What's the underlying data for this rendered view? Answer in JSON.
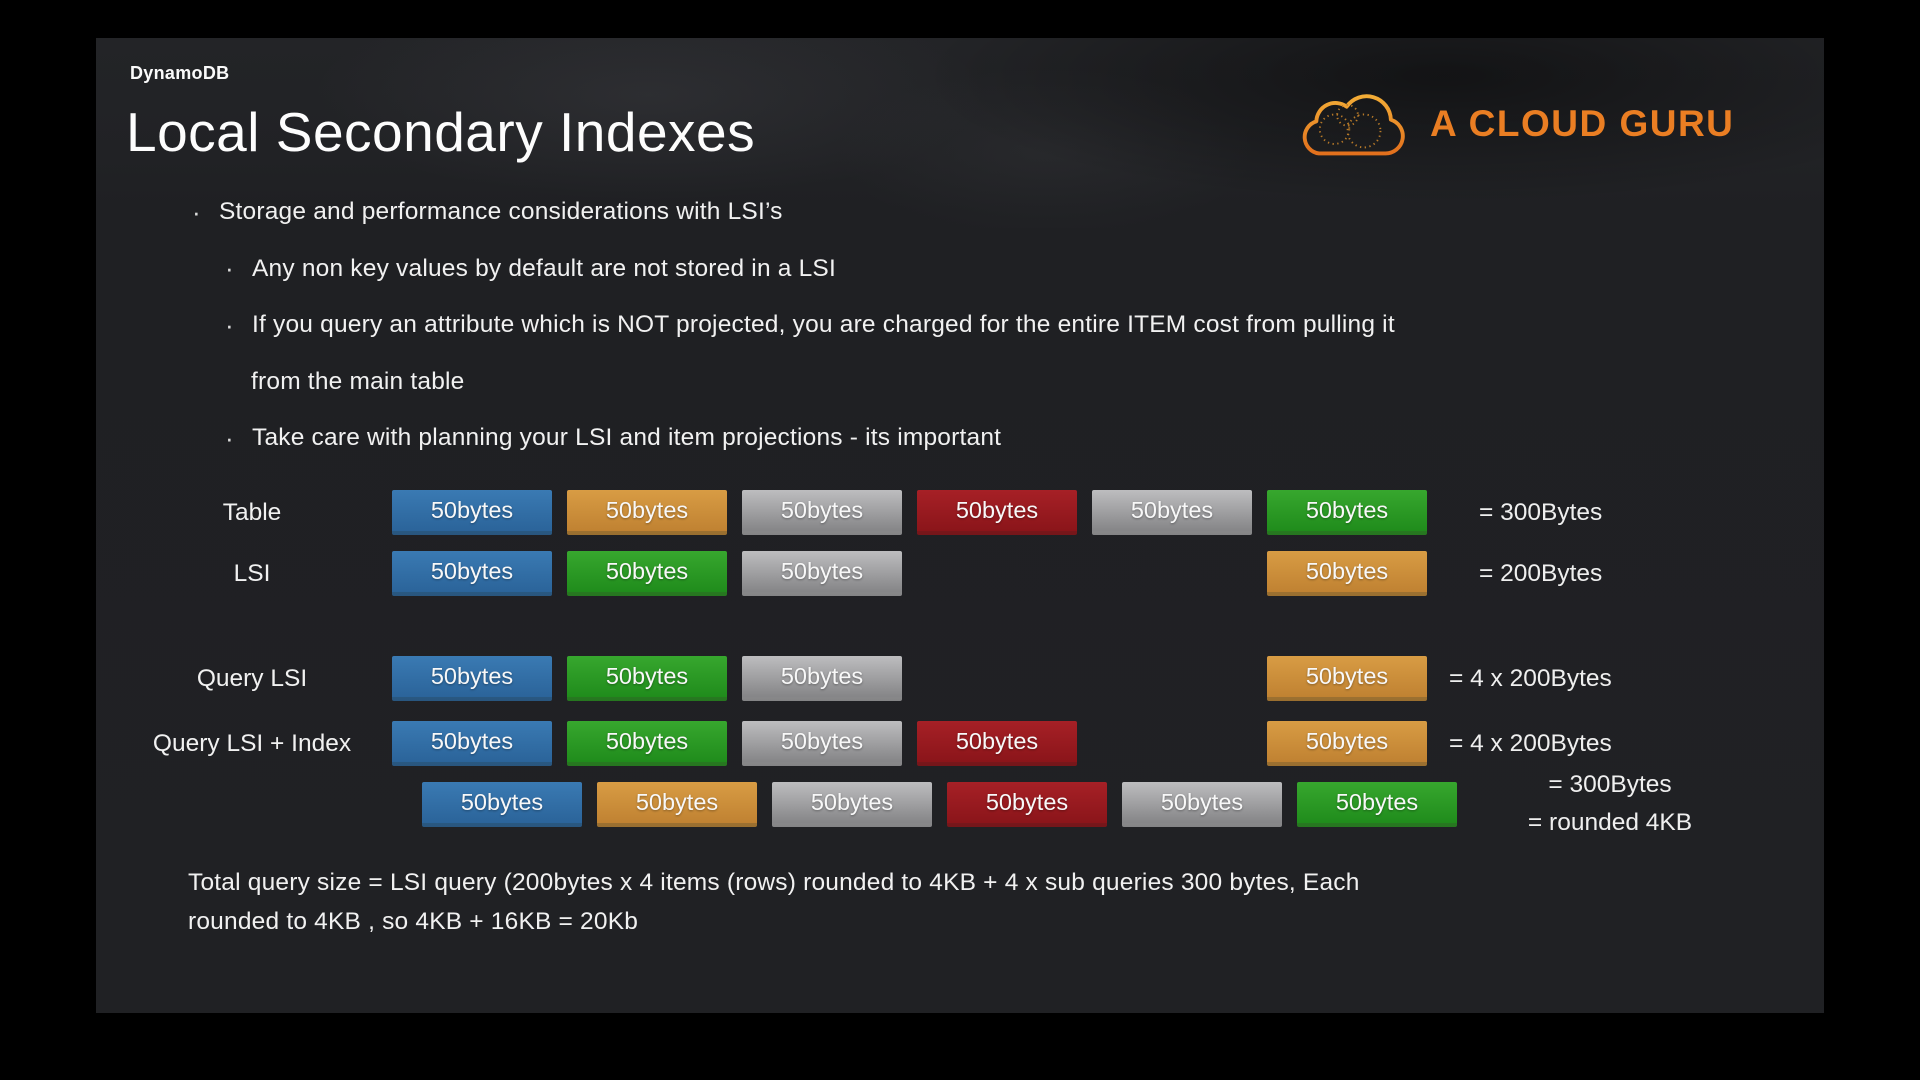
{
  "slide": {
    "kicker": "DynamoDB",
    "title": "Local Secondary Indexes",
    "logo": {
      "text": "A CLOUD GURU",
      "accent": "#EA7E23",
      "icon": "cloud-outline-dotted"
    },
    "bullets": [
      {
        "level": 1,
        "lines": [
          "Storage and performance considerations with LSI’s"
        ]
      },
      {
        "level": 2,
        "lines": [
          "Any non key values by default are not stored in a LSI"
        ]
      },
      {
        "level": 2,
        "lines": [
          "If you query an attribute which is NOT projected, you are charged for the entire ITEM cost from pulling it",
          "from the main table"
        ]
      },
      {
        "level": 2,
        "lines": [
          "Take care with planning your LSI and item projections - its important"
        ]
      }
    ],
    "diagram": {
      "box_label": "50bytes",
      "rows": [
        {
          "label": "Table",
          "boxes": [
            {
              "slot": 0,
              "color": "blue"
            },
            {
              "slot": 1,
              "color": "orange"
            },
            {
              "slot": 2,
              "color": "gray"
            },
            {
              "slot": 3,
              "color": "red"
            },
            {
              "slot": 4,
              "color": "gray"
            },
            {
              "slot": 5,
              "color": "green"
            }
          ],
          "result": "= 300Bytes"
        },
        {
          "label": "LSI",
          "boxes": [
            {
              "slot": 0,
              "color": "blue"
            },
            {
              "slot": 1,
              "color": "green"
            },
            {
              "slot": 2,
              "color": "gray"
            },
            {
              "slot": 5,
              "color": "orange"
            }
          ],
          "result": "= 200Bytes"
        },
        {
          "label": "Query LSI",
          "boxes": [
            {
              "slot": 0,
              "color": "blue"
            },
            {
              "slot": 1,
              "color": "green"
            },
            {
              "slot": 2,
              "color": "gray"
            },
            {
              "slot": 5,
              "color": "orange"
            }
          ],
          "result": "= 4 x 200Bytes"
        },
        {
          "label": "Query LSI + Index",
          "boxes": [
            {
              "slot": 0,
              "color": "blue"
            },
            {
              "slot": 1,
              "color": "green"
            },
            {
              "slot": 2,
              "color": "gray"
            },
            {
              "slot": 3,
              "color": "red"
            },
            {
              "slot": 5,
              "color": "orange"
            }
          ],
          "result": "= 4 x 200Bytes"
        },
        {
          "label": "",
          "boxes": [
            {
              "slot": 0,
              "color": "blue"
            },
            {
              "slot": 1,
              "color": "orange"
            },
            {
              "slot": 2,
              "color": "gray"
            },
            {
              "slot": 3,
              "color": "red"
            },
            {
              "slot": 4,
              "color": "gray"
            },
            {
              "slot": 5,
              "color": "green"
            }
          ],
          "result_lines": [
            "= 300Bytes",
            "= rounded 4KB"
          ]
        }
      ],
      "box_colors": {
        "blue": "#31699F",
        "orange": "#CE9138",
        "gray": "#A1A1A3",
        "red": "#9A1B20",
        "green": "#2B9A25"
      }
    },
    "footer_lines": [
      "Total query size = LSI query (200bytes x 4 items (rows) rounded to 4KB + 4 x sub queries 300 bytes, Each",
      "rounded to 4KB , so 4KB + 16KB = 20Kb"
    ]
  }
}
